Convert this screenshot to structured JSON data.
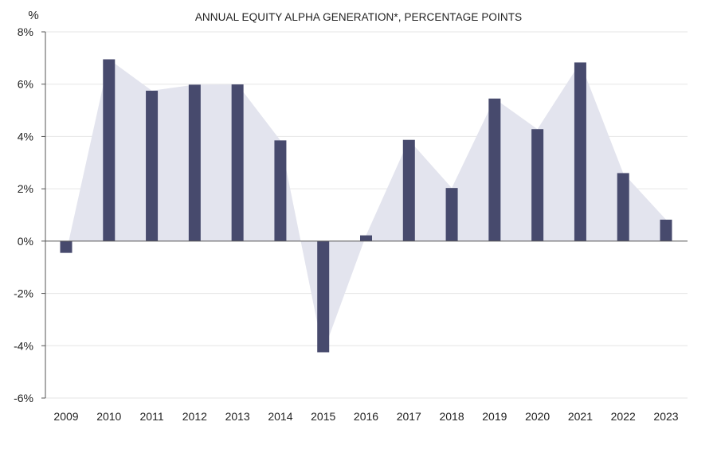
{
  "chart_data": {
    "type": "bar",
    "title": "ANNUAL EQUITY ALPHA GENERATION*, PERCENTAGE POINTS",
    "y_unit_label": "%",
    "xlabel": "",
    "ylabel": "",
    "categories": [
      "2009",
      "2010",
      "2011",
      "2012",
      "2013",
      "2014",
      "2015",
      "2016",
      "2017",
      "2018",
      "2019",
      "2020",
      "2021",
      "2022",
      "2023"
    ],
    "values": [
      -0.45,
      6.95,
      5.75,
      5.98,
      5.99,
      3.85,
      -4.25,
      0.22,
      3.87,
      2.03,
      5.45,
      4.28,
      6.83,
      2.6,
      0.82
    ],
    "ylim": [
      -6,
      8
    ],
    "yticks": [
      8,
      6,
      4,
      2,
      0,
      -2,
      -4,
      -6
    ],
    "ytick_labels": [
      "8%",
      "6%",
      "4%",
      "2%",
      "0%",
      "-2%",
      "-4%",
      "-6%"
    ],
    "grid": true,
    "area_overlay": true,
    "colors": {
      "bar": "#474a6d",
      "area": "#e3e4ee",
      "grid": "#e6e6e6",
      "axis": "#555555"
    }
  }
}
